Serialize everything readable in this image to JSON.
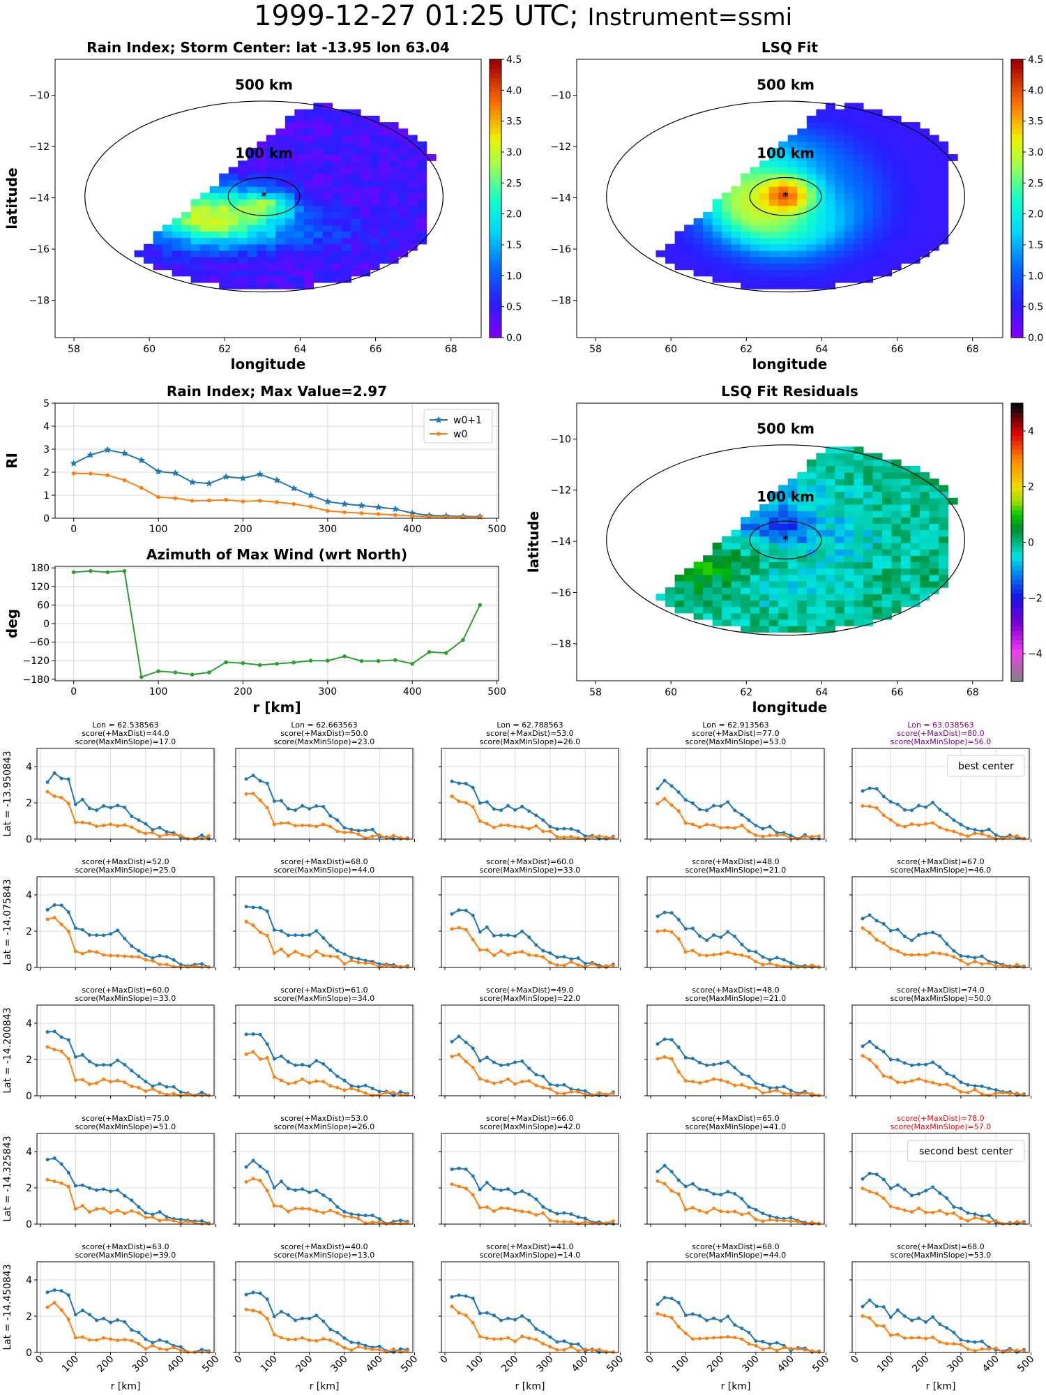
{
  "figure": {
    "title_date": "1999-12-27 01:25 UTC;",
    "title_inst": "Instrument=ssmi"
  },
  "maps": [
    {
      "id": "map1",
      "title": "Rain Index; Storm Center: lat -13.95 lon 63.04",
      "xlabel": "longitude",
      "ylabel": "latitude",
      "xlim": [
        57.5,
        68.8
      ],
      "ylim": [
        -19.45,
        -8.6
      ],
      "xticks": [
        58,
        60,
        62,
        64,
        66,
        68
      ],
      "yticks": [
        -10,
        -12,
        -14,
        -16,
        -18
      ],
      "circle_labels": [
        "500 km",
        "100 km"
      ],
      "colorbar": {
        "min": 0,
        "max": 4.5,
        "ticks": [
          "0.0",
          "0.5",
          "1.0",
          "1.5",
          "2.0",
          "2.5",
          "3.0",
          "3.5",
          "4.0",
          "4.5"
        ]
      },
      "center": [
        63.04,
        -13.95
      ],
      "kind": "rain"
    },
    {
      "id": "map2",
      "title": "LSQ Fit",
      "xlabel": "longitude",
      "ylabel": "",
      "xlim": [
        57.5,
        68.8
      ],
      "ylim": [
        -19.45,
        -8.6
      ],
      "xticks": [
        58,
        60,
        62,
        64,
        66,
        68
      ],
      "yticks": [
        -10,
        -12,
        -14,
        -16,
        -18
      ],
      "circle_labels": [
        "500 km",
        "100 km"
      ],
      "colorbar": {
        "min": 0,
        "max": 4.5,
        "ticks": [
          "0.0",
          "0.5",
          "1.0",
          "1.5",
          "2.0",
          "2.5",
          "3.0",
          "3.5",
          "4.0",
          "4.5"
        ]
      },
      "center": [
        63.04,
        -13.95
      ],
      "kind": "fit"
    },
    {
      "id": "map3",
      "title": "LSQ Fit Residuals",
      "xlabel": "longitude",
      "ylabel": "latitude",
      "xlim": [
        57.5,
        68.8
      ],
      "ylim": [
        -19.45,
        -8.6
      ],
      "xticks": [
        58,
        60,
        62,
        64,
        66,
        68
      ],
      "yticks": [
        -10,
        -12,
        -14,
        -16,
        -18
      ],
      "circle_labels": [
        "500 km",
        "100 km"
      ],
      "colorbar": {
        "min": -5,
        "max": 5,
        "ticks": [
          "−4",
          "−2",
          "0",
          "2",
          "4"
        ]
      },
      "center": [
        63.04,
        -13.95
      ],
      "kind": "resid"
    }
  ],
  "chart_data": [
    {
      "type": "line",
      "title": "Rain Index; Max Value=2.97",
      "ylabel": "RI",
      "xlabel": "",
      "xlim": [
        -22,
        502
      ],
      "ylim": [
        0,
        5
      ],
      "xticks": [
        0,
        100,
        200,
        300,
        400,
        500
      ],
      "yticks": [
        0,
        1,
        2,
        3,
        4,
        5
      ],
      "legend": "top-right",
      "x": [
        0,
        20,
        40,
        60,
        80,
        100,
        120,
        140,
        160,
        180,
        200,
        220,
        240,
        260,
        280,
        300,
        320,
        340,
        360,
        380,
        400,
        420,
        440,
        460,
        480
      ],
      "series": [
        {
          "name": "w0+1",
          "color": "#1f77b4",
          "marker": "star",
          "values": [
            2.38,
            2.75,
            2.97,
            2.82,
            2.52,
            2.03,
            1.96,
            1.57,
            1.51,
            1.8,
            1.74,
            1.91,
            1.65,
            1.3,
            1.0,
            0.72,
            0.62,
            0.55,
            0.48,
            0.4,
            0.22,
            0.12,
            0.1,
            0.08,
            0.07
          ]
        },
        {
          "name": "w0",
          "color": "#ff7f0e",
          "marker": "dot",
          "values": [
            1.95,
            1.94,
            1.87,
            1.65,
            1.32,
            0.92,
            0.87,
            0.76,
            0.77,
            0.8,
            0.73,
            0.76,
            0.7,
            0.62,
            0.5,
            0.32,
            0.26,
            0.22,
            0.18,
            0.14,
            0.1,
            0.07,
            0.06,
            0.05,
            0.05
          ]
        }
      ]
    },
    {
      "type": "line",
      "title": "Azimuth of Max Wind (wrt North)",
      "ylabel": "deg",
      "xlabel": "r [km]",
      "xlim": [
        -22,
        502
      ],
      "ylim": [
        -185,
        185
      ],
      "xticks": [
        0,
        100,
        200,
        300,
        400,
        500
      ],
      "yticks": [
        180,
        120,
        60,
        0,
        -60,
        -120,
        -180
      ],
      "x": [
        0,
        20,
        40,
        60,
        80,
        100,
        120,
        140,
        160,
        180,
        200,
        220,
        240,
        260,
        280,
        300,
        320,
        340,
        360,
        380,
        400,
        420,
        440,
        460,
        480
      ],
      "series": [
        {
          "color": "#2ca02c",
          "marker": "dot",
          "values": [
            166,
            170,
            166,
            170,
            -173,
            -154,
            -158,
            -165,
            -158,
            -125,
            -128,
            -134,
            -130,
            -126,
            -120,
            -120,
            -106,
            -121,
            -121,
            -118,
            -130,
            -92,
            -95,
            -53,
            60
          ]
        }
      ]
    },
    {
      "type": "line",
      "grid_rows": 5,
      "grid_cols": 5,
      "xlabel": "r [km]",
      "xlim": [
        -10,
        495
      ],
      "ylim": [
        0,
        5
      ],
      "xticks": [
        0,
        100,
        200,
        300,
        400,
        500
      ],
      "yticks": [
        0,
        2,
        4
      ],
      "row_labels": [
        "Lat = -13.950843",
        "Lat = -14.075843",
        "Lat = -14.200843",
        "Lat = -14.325843",
        "Lat = -14.450843"
      ],
      "col_lons": [
        "Lon = 62.538563",
        "Lon = 62.663563",
        "Lon = 62.788563",
        "Lon = 62.913563",
        "Lon = 63.038563"
      ],
      "panels": [
        {
          "lines": [
            "Lon = 62.538563",
            "score(+MaxDist)=44.0",
            "score(MaxMinSlope)=17.0"
          ],
          "color": "#000000"
        },
        {
          "lines": [
            "Lon = 62.663563",
            "score(+MaxDist)=50.0",
            "score(MaxMinSlope)=23.0"
          ],
          "color": "#000000"
        },
        {
          "lines": [
            "Lon = 62.788563",
            "score(+MaxDist)=53.0",
            "score(MaxMinSlope)=26.0"
          ],
          "color": "#000000"
        },
        {
          "lines": [
            "Lon = 62.913563",
            "score(+MaxDist)=77.0",
            "score(MaxMinSlope)=53.0"
          ],
          "color": "#000000"
        },
        {
          "lines": [
            "Lon = 63.038563",
            "score(+MaxDist)=80.0",
            "score(MaxMinSlope)=56.0"
          ],
          "color": "#800080",
          "legend": "best center"
        },
        {
          "lines": [
            "score(+MaxDist)=52.0",
            "score(MaxMinSlope)=25.0"
          ],
          "color": "#000000"
        },
        {
          "lines": [
            "score(+MaxDist)=68.0",
            "score(MaxMinSlope)=44.0"
          ],
          "color": "#000000"
        },
        {
          "lines": [
            "score(+MaxDist)=60.0",
            "score(MaxMinSlope)=33.0"
          ],
          "color": "#000000"
        },
        {
          "lines": [
            "score(+MaxDist)=48.0",
            "score(MaxMinSlope)=21.0"
          ],
          "color": "#000000"
        },
        {
          "lines": [
            "score(+MaxDist)=67.0",
            "score(MaxMinSlope)=46.0"
          ],
          "color": "#000000"
        },
        {
          "lines": [
            "score(+MaxDist)=60.0",
            "score(MaxMinSlope)=33.0"
          ],
          "color": "#000000"
        },
        {
          "lines": [
            "score(+MaxDist)=61.0",
            "score(MaxMinSlope)=34.0"
          ],
          "color": "#000000"
        },
        {
          "lines": [
            "score(+MaxDist)=49.0",
            "score(MaxMinSlope)=22.0"
          ],
          "color": "#000000"
        },
        {
          "lines": [
            "score(+MaxDist)=48.0",
            "score(MaxMinSlope)=21.0"
          ],
          "color": "#000000"
        },
        {
          "lines": [
            "score(+MaxDist)=74.0",
            "score(MaxMinSlope)=50.0"
          ],
          "color": "#000000"
        },
        {
          "lines": [
            "score(+MaxDist)=75.0",
            "score(MaxMinSlope)=51.0"
          ],
          "color": "#000000"
        },
        {
          "lines": [
            "score(+MaxDist)=53.0",
            "score(MaxMinSlope)=26.0"
          ],
          "color": "#000000"
        },
        {
          "lines": [
            "score(+MaxDist)=66.0",
            "score(MaxMinSlope)=42.0"
          ],
          "color": "#000000"
        },
        {
          "lines": [
            "score(+MaxDist)=65.0",
            "score(MaxMinSlope)=41.0"
          ],
          "color": "#000000"
        },
        {
          "lines": [
            "score(+MaxDist)=78.0",
            "score(MaxMinSlope)=57.0"
          ],
          "color": "#ff0000",
          "legend": "second best center"
        },
        {
          "lines": [
            "score(+MaxDist)=63.0",
            "score(MaxMinSlope)=39.0"
          ],
          "color": "#000000"
        },
        {
          "lines": [
            "score(+MaxDist)=40.0",
            "score(MaxMinSlope)=13.0"
          ],
          "color": "#000000"
        },
        {
          "lines": [
            "score(+MaxDist)=41.0",
            "score(MaxMinSlope)=14.0"
          ],
          "color": "#000000"
        },
        {
          "lines": [
            "score(+MaxDist)=68.0",
            "score(MaxMinSlope)=44.0"
          ],
          "color": "#000000"
        },
        {
          "lines": [
            "score(+MaxDist)=68.0",
            "score(MaxMinSlope)=53.0"
          ],
          "color": "#000000"
        }
      ]
    }
  ]
}
